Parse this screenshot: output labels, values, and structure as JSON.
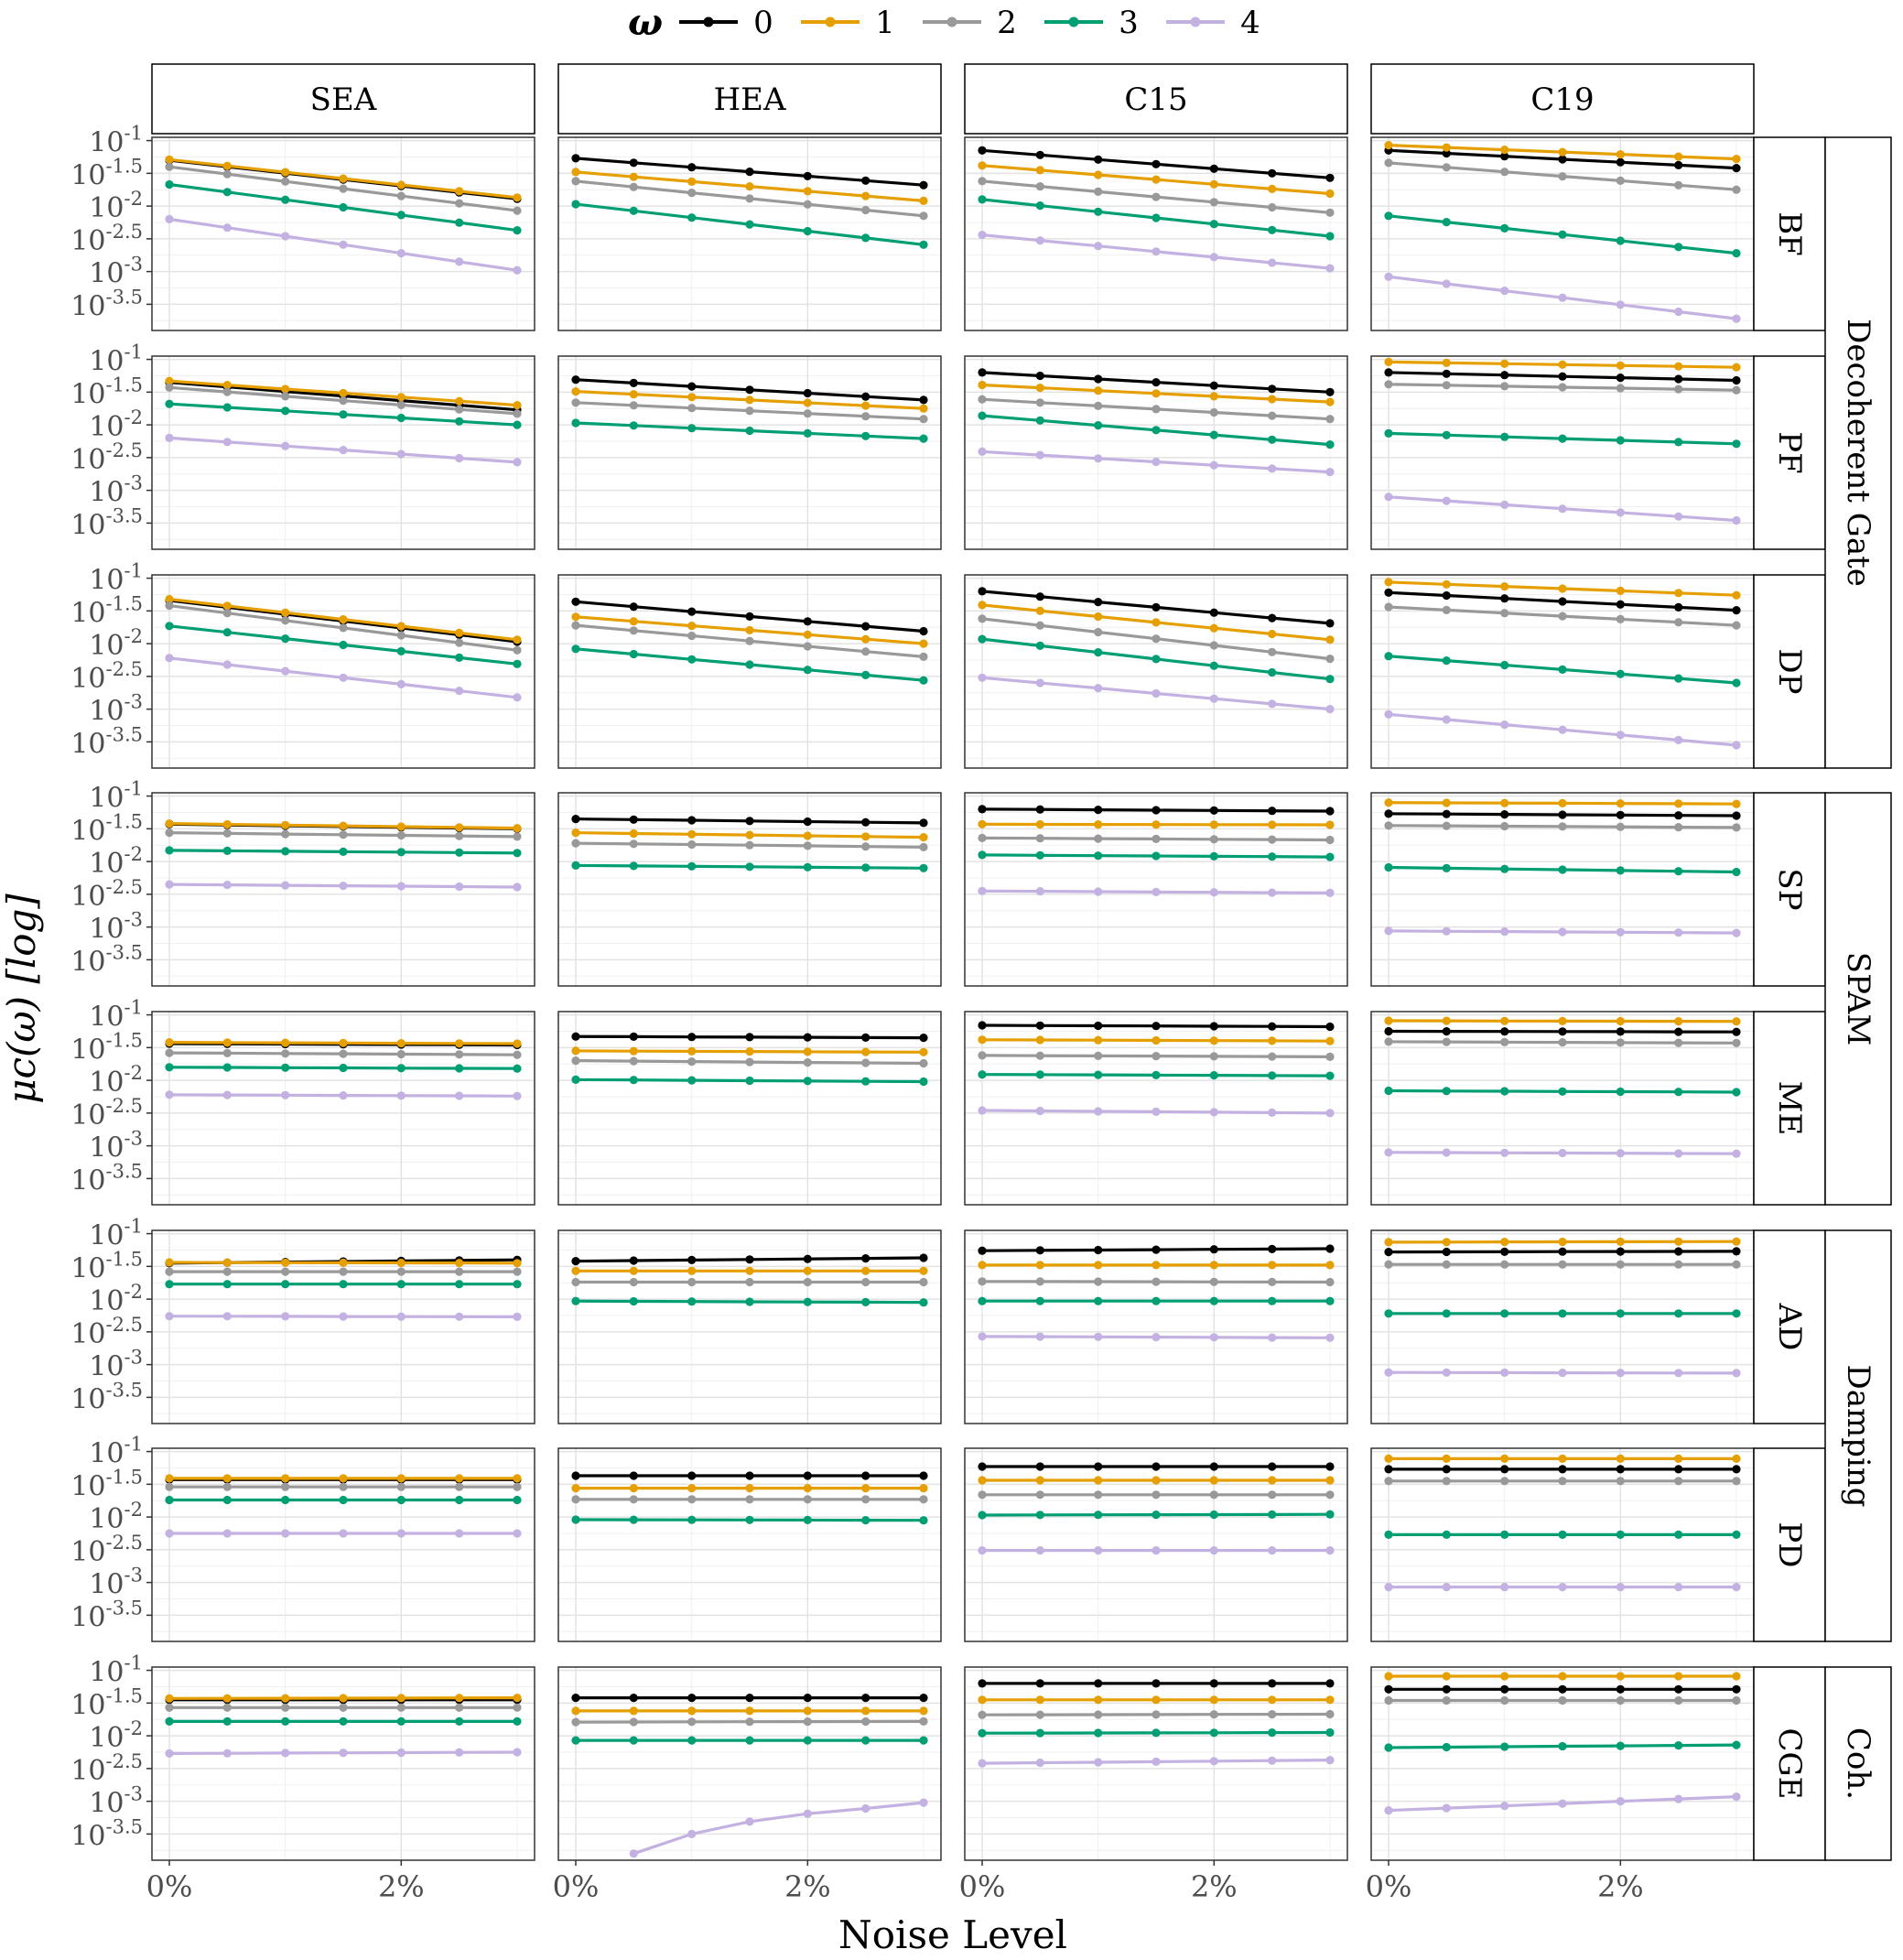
{
  "chart_data": {
    "type": "line",
    "legend": {
      "title": "ω",
      "position": "top",
      "entries": [
        "0",
        "1",
        "2",
        "3",
        "4"
      ]
    },
    "colors": {
      "0": "#000000",
      "1": "#E69F00",
      "2": "#999999",
      "3": "#009E73",
      "4": "#C3B1E1"
    },
    "xlabel": "Noise Level",
    "ylabel": "μc(ω) [log]",
    "y_scale": "log10",
    "ylim_log10": [
      -3.9,
      -0.95
    ],
    "xlim_percent": [
      -0.15,
      3.15
    ],
    "x": [
      0,
      0.5,
      1,
      1.5,
      2,
      2.5,
      3
    ],
    "x_ticks": [
      {
        "value": 0,
        "label": "0%"
      },
      {
        "value": 2,
        "label": "2%"
      }
    ],
    "y_ticks": [
      {
        "log10": -1,
        "base": "10",
        "exp": "-1"
      },
      {
        "log10": -1.5,
        "base": "10",
        "exp": "-1.5"
      },
      {
        "log10": -2,
        "base": "10",
        "exp": "-2"
      },
      {
        "log10": -2.5,
        "base": "10",
        "exp": "-2.5"
      },
      {
        "log10": -3,
        "base": "10",
        "exp": "-3"
      },
      {
        "log10": -3.5,
        "base": "10",
        "exp": "-3.5"
      }
    ],
    "grid": true,
    "columns": [
      "SEA",
      "HEA",
      "C15",
      "C19"
    ],
    "rows": [
      "BF",
      "PF",
      "DP",
      "SP",
      "ME",
      "AD",
      "PD",
      "CGE"
    ],
    "row_groups": [
      {
        "label": "Decoherent Gate",
        "rows": [
          "BF",
          "PF",
          "DP"
        ]
      },
      {
        "label": "SPAM",
        "rows": [
          "SP",
          "ME"
        ]
      },
      {
        "label": "Damping",
        "rows": [
          "AD",
          "PD"
        ]
      },
      {
        "label": "Coh.",
        "rows": [
          "CGE"
        ]
      }
    ],
    "panels": {
      "BF": {
        "SEA": {
          "0": [
            -1.3,
            -1.89
          ],
          "1": [
            -1.29,
            -1.87
          ],
          "2": [
            -1.4,
            -2.07
          ],
          "3": [
            -1.67,
            -2.37
          ],
          "4": [
            -2.2,
            -2.98
          ]
        },
        "HEA": {
          "0": [
            -1.27,
            -1.68
          ],
          "1": [
            -1.48,
            -1.92
          ],
          "2": [
            -1.62,
            -2.15
          ],
          "3": [
            -1.97,
            -2.59
          ]
        },
        "C15": {
          "0": [
            -1.15,
            -1.57
          ],
          "1": [
            -1.38,
            -1.81
          ],
          "2": [
            -1.62,
            -2.1
          ],
          "3": [
            -1.9,
            -2.46
          ],
          "4": [
            -2.44,
            -2.95
          ]
        },
        "C19": {
          "0": [
            -1.15,
            -1.42
          ],
          "1": [
            -1.07,
            -1.28
          ],
          "2": [
            -1.34,
            -1.75
          ],
          "3": [
            -2.15,
            -2.72
          ],
          "4": [
            -3.08,
            -3.72
          ]
        }
      },
      "PF": {
        "SEA": {
          "0": [
            -1.35,
            -1.77
          ],
          "1": [
            -1.33,
            -1.7
          ],
          "2": [
            -1.43,
            -1.83
          ],
          "3": [
            -1.68,
            -2.0
          ],
          "4": [
            -2.2,
            -2.57
          ]
        },
        "HEA": {
          "0": [
            -1.31,
            -1.62
          ],
          "1": [
            -1.49,
            -1.75
          ],
          "2": [
            -1.66,
            -1.91
          ],
          "3": [
            -1.97,
            -2.21
          ]
        },
        "C15": {
          "0": [
            -1.2,
            -1.5
          ],
          "1": [
            -1.39,
            -1.65
          ],
          "2": [
            -1.61,
            -1.91
          ],
          "3": [
            -1.86,
            -2.3
          ],
          "4": [
            -2.41,
            -2.72
          ]
        },
        "C19": {
          "0": [
            -1.2,
            -1.32
          ],
          "1": [
            -1.04,
            -1.12
          ],
          "2": [
            -1.38,
            -1.47
          ],
          "3": [
            -2.13,
            -2.29
          ],
          "4": [
            -3.1,
            -3.46
          ]
        }
      },
      "DP": {
        "SEA": {
          "0": [
            -1.34,
            -1.97
          ],
          "1": [
            -1.32,
            -1.94
          ],
          "2": [
            -1.42,
            -2.1
          ],
          "3": [
            -1.73,
            -2.31
          ],
          "4": [
            -2.22,
            -2.82
          ]
        },
        "HEA": {
          "0": [
            -1.36,
            -1.81
          ],
          "1": [
            -1.59,
            -2.0
          ],
          "2": [
            -1.72,
            -2.2
          ],
          "3": [
            -2.08,
            -2.56
          ]
        },
        "C15": {
          "0": [
            -1.2,
            -1.69
          ],
          "1": [
            -1.41,
            -1.94
          ],
          "2": [
            -1.62,
            -2.23
          ],
          "3": [
            -1.93,
            -2.54
          ],
          "4": [
            -2.52,
            -3.0
          ]
        },
        "C19": {
          "0": [
            -1.22,
            -1.49
          ],
          "1": [
            -1.06,
            -1.26
          ],
          "2": [
            -1.44,
            -1.72
          ],
          "3": [
            -2.19,
            -2.6
          ],
          "4": [
            -3.08,
            -3.55
          ]
        }
      },
      "SP": {
        "SEA": {
          "0": [
            -1.43,
            -1.5
          ],
          "1": [
            -1.42,
            -1.49
          ],
          "2": [
            -1.56,
            -1.62
          ],
          "3": [
            -1.83,
            -1.87
          ],
          "4": [
            -2.35,
            -2.39
          ]
        },
        "HEA": {
          "0": [
            -1.35,
            -1.41
          ],
          "1": [
            -1.56,
            -1.63
          ],
          "2": [
            -1.72,
            -1.78
          ],
          "3": [
            -2.06,
            -2.1
          ]
        },
        "C15": {
          "0": [
            -1.2,
            -1.23
          ],
          "1": [
            -1.43,
            -1.44
          ],
          "2": [
            -1.64,
            -1.67
          ],
          "3": [
            -1.9,
            -1.93
          ],
          "4": [
            -2.45,
            -2.48
          ]
        },
        "C19": {
          "0": [
            -1.27,
            -1.3
          ],
          "1": [
            -1.1,
            -1.12
          ],
          "2": [
            -1.45,
            -1.48
          ],
          "3": [
            -2.09,
            -2.16
          ],
          "4": [
            -3.06,
            -3.09
          ]
        }
      },
      "ME": {
        "SEA": {
          "0": [
            -1.44,
            -1.46
          ],
          "1": [
            -1.42,
            -1.44
          ],
          "2": [
            -1.58,
            -1.61
          ],
          "3": [
            -1.8,
            -1.82
          ],
          "4": [
            -2.22,
            -2.24
          ]
        },
        "HEA": {
          "0": [
            -1.33,
            -1.35
          ],
          "1": [
            -1.55,
            -1.57
          ],
          "2": [
            -1.7,
            -1.74
          ],
          "3": [
            -1.99,
            -2.02
          ]
        },
        "C15": {
          "0": [
            -1.16,
            -1.18
          ],
          "1": [
            -1.38,
            -1.4
          ],
          "2": [
            -1.62,
            -1.64
          ],
          "3": [
            -1.91,
            -1.93
          ],
          "4": [
            -2.46,
            -2.5
          ]
        },
        "C19": {
          "0": [
            -1.25,
            -1.26
          ],
          "1": [
            -1.09,
            -1.1
          ],
          "2": [
            -1.41,
            -1.43
          ],
          "3": [
            -2.16,
            -2.18
          ],
          "4": [
            -3.1,
            -3.12
          ]
        }
      },
      "AD": {
        "SEA": {
          "0": [
            -1.45,
            -1.4
          ],
          "1": [
            -1.44,
            -1.45
          ],
          "2": [
            -1.58,
            -1.58
          ],
          "3": [
            -1.77,
            -1.77
          ],
          "4": [
            -2.26,
            -2.27
          ]
        },
        "HEA": {
          "0": [
            -1.42,
            -1.37
          ],
          "1": [
            -1.57,
            -1.57
          ],
          "2": [
            -1.74,
            -1.74
          ],
          "3": [
            -2.03,
            -2.05
          ]
        },
        "C15": {
          "0": [
            -1.26,
            -1.23
          ],
          "1": [
            -1.48,
            -1.48
          ],
          "2": [
            -1.73,
            -1.74
          ],
          "3": [
            -2.03,
            -2.03
          ],
          "4": [
            -2.57,
            -2.59
          ]
        },
        "C19": {
          "0": [
            -1.28,
            -1.27
          ],
          "1": [
            -1.13,
            -1.12
          ],
          "2": [
            -1.47,
            -1.47
          ],
          "3": [
            -2.22,
            -2.22
          ],
          "4": [
            -3.12,
            -3.13
          ]
        }
      },
      "PD": {
        "SEA": {
          "0": [
            -1.43,
            -1.43
          ],
          "1": [
            -1.41,
            -1.41
          ],
          "2": [
            -1.54,
            -1.54
          ],
          "3": [
            -1.74,
            -1.74
          ],
          "4": [
            -2.25,
            -2.25
          ]
        },
        "HEA": {
          "0": [
            -1.37,
            -1.37
          ],
          "1": [
            -1.56,
            -1.56
          ],
          "2": [
            -1.73,
            -1.73
          ],
          "3": [
            -2.04,
            -2.05
          ]
        },
        "C15": {
          "0": [
            -1.23,
            -1.23
          ],
          "1": [
            -1.44,
            -1.44
          ],
          "2": [
            -1.66,
            -1.66
          ],
          "3": [
            -1.97,
            -1.96
          ],
          "4": [
            -2.51,
            -2.51
          ]
        },
        "C19": {
          "0": [
            -1.27,
            -1.27
          ],
          "1": [
            -1.11,
            -1.11
          ],
          "2": [
            -1.45,
            -1.45
          ],
          "3": [
            -2.27,
            -2.27
          ],
          "4": [
            -3.07,
            -3.07
          ]
        }
      },
      "CGE": {
        "SEA": {
          "0": [
            -1.45,
            -1.45
          ],
          "1": [
            -1.43,
            -1.42
          ],
          "2": [
            -1.57,
            -1.57
          ],
          "3": [
            -1.78,
            -1.78
          ],
          "4": [
            -2.27,
            -2.25
          ]
        },
        "HEA": {
          "0": [
            -1.42,
            -1.42
          ],
          "1": [
            -1.62,
            -1.62
          ],
          "2": [
            -1.79,
            -1.78
          ],
          "3": [
            -2.07,
            -2.07
          ],
          "4": [
            -3.8,
            -3.5,
            -3.31,
            -3.19,
            -3.11,
            -3.02
          ]
        },
        "C15": {
          "0": [
            -1.2,
            -1.2
          ],
          "1": [
            -1.45,
            -1.45
          ],
          "2": [
            -1.68,
            -1.67
          ],
          "3": [
            -1.96,
            -1.95
          ],
          "4": [
            -2.42,
            -2.37
          ]
        },
        "C19": {
          "0": [
            -1.29,
            -1.29
          ],
          "1": [
            -1.09,
            -1.09
          ],
          "2": [
            -1.46,
            -1.46
          ],
          "3": [
            -2.18,
            -2.14
          ],
          "4": [
            -3.14,
            -2.93
          ]
        }
      }
    }
  }
}
